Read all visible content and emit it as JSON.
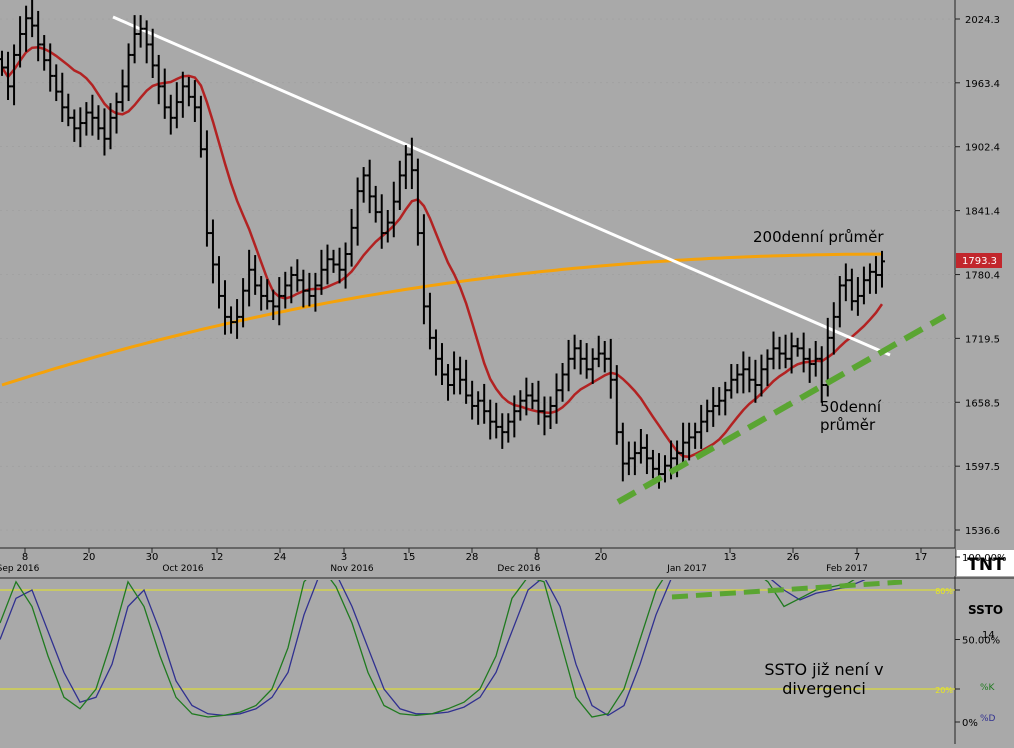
{
  "chart_data": [
    {
      "type": "ohlc",
      "y_axis": {
        "ticks": [
          2024.3,
          1963.4,
          1902.4,
          1841.4,
          1780.4,
          1719.5,
          1658.5,
          1597.5,
          1536.6
        ],
        "tick_labels": [
          "2024.3",
          "1963.4",
          "1902.4",
          "1841.4",
          "1780.4",
          "1719.5",
          "1658.5",
          "1597.5",
          "1536.6"
        ],
        "last_price": "1793.3",
        "range": [
          1500,
          2050
        ]
      },
      "x_axis": {
        "day_labels": [
          "8",
          "20",
          "30",
          "12",
          "24",
          "3",
          "15",
          "28",
          "8",
          "20",
          "13",
          "26",
          "7",
          "17"
        ],
        "month_labels": [
          "Sep 2016",
          "Oct 2016",
          "Nov 2016",
          "Dec 2016",
          "Jan 2017",
          "Feb 2017"
        ]
      },
      "annotations": {
        "ma200_label": "200denní průměr",
        "ma50_label_line1": "50denní",
        "ma50_label_line2": "průměr"
      },
      "logo": "TNT",
      "ohlc_close": [
        1978,
        1960,
        1990,
        2010,
        2025,
        2018,
        2000,
        1985,
        1970,
        1955,
        1940,
        1930,
        1920,
        1925,
        1935,
        1930,
        1920,
        1910,
        1930,
        1945,
        1960,
        1990,
        2010,
        2015,
        2000,
        1980,
        1960,
        1940,
        1930,
        1945,
        1960,
        1950,
        1940,
        1900,
        1820,
        1790,
        1760,
        1740,
        1735,
        1740,
        1765,
        1785,
        1770,
        1760,
        1755,
        1750,
        1760,
        1770,
        1780,
        1775,
        1765,
        1760,
        1770,
        1785,
        1795,
        1790,
        1785,
        1800,
        1825,
        1860,
        1875,
        1855,
        1840,
        1820,
        1830,
        1850,
        1875,
        1895,
        1880,
        1820,
        1750,
        1720,
        1700,
        1685,
        1675,
        1690,
        1680,
        1665,
        1655,
        1660,
        1650,
        1640,
        1635,
        1630,
        1640,
        1650,
        1660,
        1665,
        1660,
        1650,
        1645,
        1655,
        1670,
        1685,
        1700,
        1710,
        1700,
        1690,
        1700,
        1705,
        1700,
        1680,
        1630,
        1600,
        1605,
        1610,
        1615,
        1605,
        1595,
        1590,
        1598,
        1605,
        1610,
        1620,
        1625,
        1630,
        1640,
        1650,
        1655,
        1660,
        1670,
        1680,
        1685,
        1690,
        1680,
        1675,
        1690,
        1700,
        1710,
        1705,
        1700,
        1712,
        1710,
        1700,
        1695,
        1700,
        1675,
        1720,
        1740,
        1770,
        1775,
        1755,
        1760,
        1775,
        1783,
        1780,
        1793
      ]
    },
    {
      "type": "line",
      "name": "SSTO",
      "period": "14",
      "y_axis": {
        "ticks": [
          "100.00%",
          "80%",
          "50.00%",
          "20%",
          "0%"
        ],
        "range": [
          0,
          100
        ]
      },
      "series_labels": {
        "k": "%K",
        "d": "%D"
      },
      "annotation": {
        "line1": "SSTO již není v",
        "line2": "divergenci"
      },
      "k_values": [
        60,
        85,
        70,
        40,
        15,
        8,
        20,
        50,
        85,
        70,
        40,
        15,
        5,
        3,
        4,
        6,
        10,
        20,
        45,
        85,
        95,
        82,
        60,
        30,
        10,
        5,
        4,
        5,
        8,
        12,
        20,
        40,
        75,
        88,
        85,
        50,
        15,
        3,
        5,
        20,
        50,
        80,
        95,
        92,
        90,
        88,
        90,
        92,
        85,
        70,
        75,
        80,
        82,
        84,
        90,
        94
      ],
      "d_values": [
        50,
        75,
        80,
        55,
        30,
        12,
        15,
        35,
        70,
        80,
        55,
        25,
        10,
        5,
        4,
        5,
        8,
        15,
        30,
        65,
        90,
        90,
        70,
        45,
        20,
        8,
        5,
        5,
        6,
        9,
        15,
        30,
        55,
        80,
        88,
        70,
        35,
        10,
        4,
        10,
        35,
        65,
        88,
        94,
        92,
        90,
        88,
        90,
        88,
        80,
        74,
        78,
        80,
        82,
        86,
        92
      ]
    }
  ]
}
